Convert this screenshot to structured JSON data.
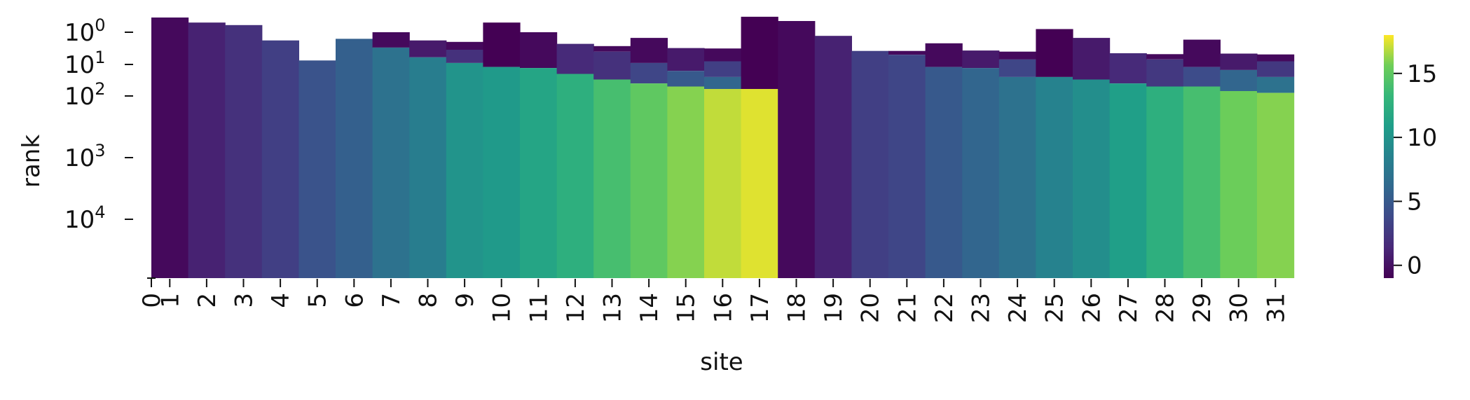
{
  "chart_data": {
    "type": "heatmap",
    "title": "",
    "xlabel": "site",
    "ylabel": "rank",
    "x_ticks": [
      "0",
      "1",
      "2",
      "3",
      "4",
      "5",
      "6",
      "7",
      "8",
      "9",
      "10",
      "11",
      "12",
      "13",
      "14",
      "15",
      "16",
      "17",
      "18",
      "19",
      "20",
      "21",
      "22",
      "23",
      "24",
      "25",
      "26",
      "27",
      "28",
      "29",
      "30",
      "31"
    ],
    "y_ticks": [
      {
        "base": "10",
        "exp": "0"
      },
      {
        "base": "10",
        "exp": "1"
      },
      {
        "base": "10",
        "exp": "2"
      },
      {
        "base": "10",
        "exp": "3"
      },
      {
        "base": "10",
        "exp": "4"
      }
    ],
    "colorbar": {
      "ticks": [
        "0",
        "5",
        "10",
        "15"
      ],
      "range": [
        -1,
        18
      ],
      "colormap": "viridis"
    },
    "layers_note": "Each site column is drawn as stacked colored segments; y is rank on a log scale.",
    "columns": [
      {
        "site": 1,
        "top": 0.35,
        "segments": [
          {
            "to": 1000000000.0,
            "value": -0.5
          }
        ]
      },
      {
        "site": 2,
        "top": 0.5,
        "segments": [
          {
            "to": 1000000000.0,
            "value": 1
          }
        ]
      },
      {
        "site": 3,
        "top": 0.6,
        "segments": [
          {
            "to": 1000000000.0,
            "value": 2
          }
        ]
      },
      {
        "site": 4,
        "top": 1.8,
        "segments": [
          {
            "to": 1000000000.0,
            "value": 3
          }
        ]
      },
      {
        "site": 5,
        "top": 7.5,
        "segments": [
          {
            "to": 1000000000.0,
            "value": 4.5
          }
        ]
      },
      {
        "site": 6,
        "top": 1.6,
        "segments": [
          {
            "to": 1.6,
            "value": -0.5
          },
          {
            "to": 1000000000.0,
            "value": 5.5
          }
        ]
      },
      {
        "site": 7,
        "top": 1.0,
        "segments": [
          {
            "to": 3.0,
            "value": -0.5
          },
          {
            "to": 1000000000.0,
            "value": 7
          }
        ]
      },
      {
        "site": 8,
        "top": 1.8,
        "segments": [
          {
            "to": 6.0,
            "value": 0.5
          },
          {
            "to": 1000000000.0,
            "value": 8
          }
        ]
      },
      {
        "site": 9,
        "top": 2.0,
        "segments": [
          {
            "to": 3.5,
            "value": -0.5
          },
          {
            "to": 9.0,
            "value": 2
          },
          {
            "to": 1000000000.0,
            "value": 10
          }
        ]
      },
      {
        "site": 10,
        "top": 0.5,
        "segments": [
          {
            "to": 12,
            "value": -1
          },
          {
            "to": 1000000000.0,
            "value": 10.5
          }
        ]
      },
      {
        "site": 11,
        "top": 1.0,
        "segments": [
          {
            "to": 13,
            "value": -0.5
          },
          {
            "to": 1000000000.0,
            "value": 11.5
          }
        ]
      },
      {
        "site": 12,
        "top": 2.3,
        "segments": [
          {
            "to": 20,
            "value": 1.5
          },
          {
            "to": 1000000000.0,
            "value": 12.5
          }
        ]
      },
      {
        "site": 13,
        "top": 2.7,
        "segments": [
          {
            "to": 4,
            "value": -0.5
          },
          {
            "to": 30,
            "value": 2
          },
          {
            "to": 1000000000.0,
            "value": 14
          }
        ]
      },
      {
        "site": 14,
        "top": 1.5,
        "segments": [
          {
            "to": 9,
            "value": -0.5
          },
          {
            "to": 40,
            "value": 3.5
          },
          {
            "to": 1000000000.0,
            "value": 15
          }
        ]
      },
      {
        "site": 15,
        "top": 3.1,
        "segments": [
          {
            "to": 16,
            "value": 0.5
          },
          {
            "to": 50,
            "value": 5
          },
          {
            "to": 1000000000.0,
            "value": 16
          }
        ]
      },
      {
        "site": 16,
        "top": 3.2,
        "segments": [
          {
            "to": 8,
            "value": -0.5
          },
          {
            "to": 25,
            "value": 3
          },
          {
            "to": 60,
            "value": 6
          },
          {
            "to": 1000000000.0,
            "value": 17
          }
        ]
      },
      {
        "site": 17,
        "top": 0.33,
        "segments": [
          {
            "to": 60,
            "value": -1
          },
          {
            "to": 1000000000.0,
            "value": 17.5
          }
        ]
      },
      {
        "site": 18,
        "top": 0.45,
        "segments": [
          {
            "to": 1000000000.0,
            "value": -0.5
          }
        ]
      },
      {
        "site": 19,
        "top": 1.3,
        "segments": [
          {
            "to": 1000000000.0,
            "value": 1
          }
        ]
      },
      {
        "site": 20,
        "top": 3.8,
        "segments": [
          {
            "to": 1000000000.0,
            "value": 3
          }
        ]
      },
      {
        "site": 21,
        "top": 3.8,
        "segments": [
          {
            "to": 5,
            "value": -0.5
          },
          {
            "to": 1000000000.0,
            "value": 3.5
          }
        ]
      },
      {
        "site": 22,
        "top": 2.2,
        "segments": [
          {
            "to": 12,
            "value": -0.5
          },
          {
            "to": 1000000000.0,
            "value": 5
          }
        ]
      },
      {
        "site": 23,
        "top": 3.7,
        "segments": [
          {
            "to": 13,
            "value": 0.5
          },
          {
            "to": 1000000000.0,
            "value": 6
          }
        ]
      },
      {
        "site": 24,
        "top": 4.0,
        "segments": [
          {
            "to": 7,
            "value": -0.5
          },
          {
            "to": 25,
            "value": 3.5
          },
          {
            "to": 1000000000.0,
            "value": 7
          }
        ]
      },
      {
        "site": 25,
        "top": 0.8,
        "segments": [
          {
            "to": 25,
            "value": -1
          },
          {
            "to": 1000000000.0,
            "value": 8.5
          }
        ]
      },
      {
        "site": 26,
        "top": 1.5,
        "segments": [
          {
            "to": 30,
            "value": 0.5
          },
          {
            "to": 1000000000.0,
            "value": 9.5
          }
        ]
      },
      {
        "site": 27,
        "top": 4.5,
        "segments": [
          {
            "to": 40,
            "value": 1.5
          },
          {
            "to": 1000000000.0,
            "value": 11
          }
        ]
      },
      {
        "site": 28,
        "top": 4.8,
        "segments": [
          {
            "to": 7,
            "value": -0.5
          },
          {
            "to": 50,
            "value": 2.5
          },
          {
            "to": 1000000000.0,
            "value": 12.5
          }
        ]
      },
      {
        "site": 29,
        "top": 1.7,
        "segments": [
          {
            "to": 12,
            "value": -0.5
          },
          {
            "to": 50,
            "value": 4
          },
          {
            "to": 1000000000.0,
            "value": 14
          }
        ]
      },
      {
        "site": 30,
        "top": 4.6,
        "segments": [
          {
            "to": 15,
            "value": 0.5
          },
          {
            "to": 70,
            "value": 6
          },
          {
            "to": 1000000000.0,
            "value": 15.5
          }
        ]
      },
      {
        "site": 31,
        "top": 4.9,
        "segments": [
          {
            "to": 8,
            "value": -0.5
          },
          {
            "to": 25,
            "value": 2.5
          },
          {
            "to": 80,
            "value": 7
          },
          {
            "to": 1000000000.0,
            "value": 16
          }
        ]
      }
    ]
  }
}
